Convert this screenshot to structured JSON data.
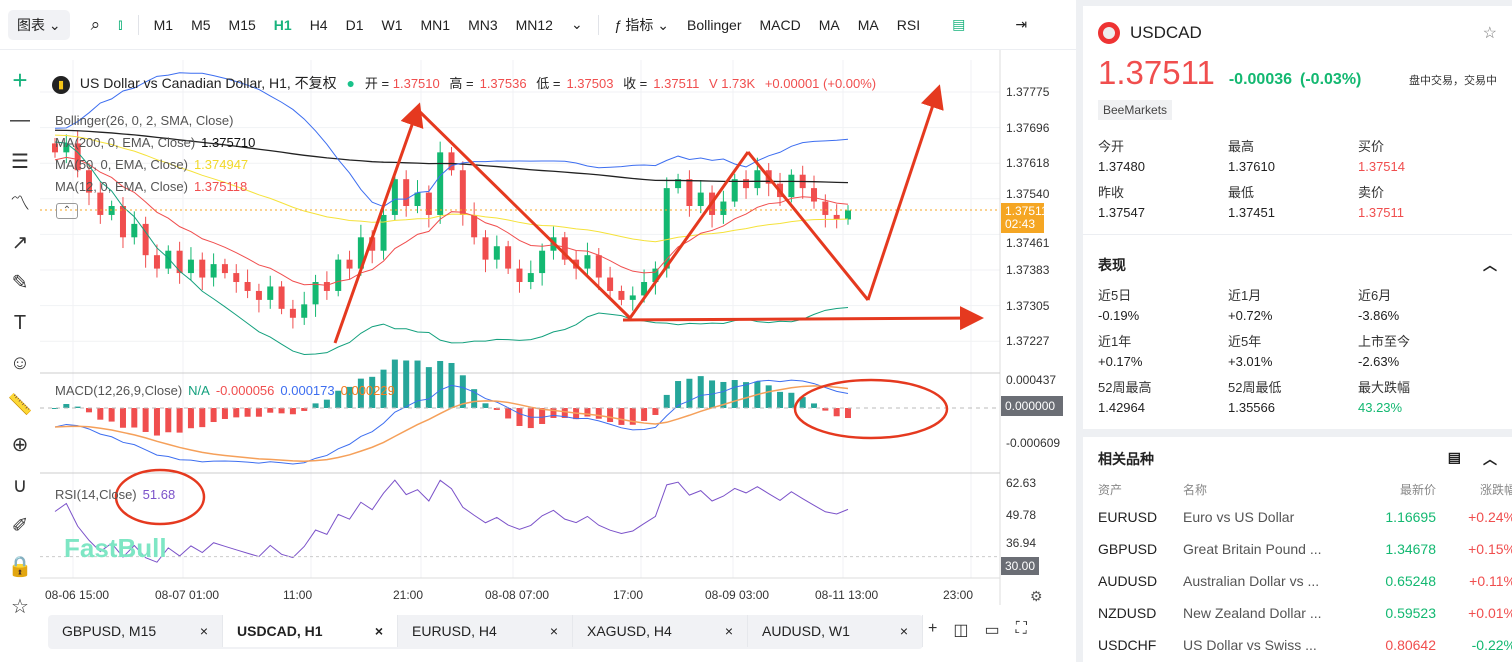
{
  "toolbar": {
    "chart_type": "图表",
    "timeframes": [
      "M1",
      "M5",
      "M15",
      "H1",
      "H4",
      "D1",
      "W1",
      "MN1",
      "MN3",
      "MN12"
    ],
    "active_timeframe": "H1",
    "indicators_label": "指标",
    "indicators": [
      "Bollinger",
      "MACD",
      "MA",
      "MA",
      "RSI"
    ]
  },
  "legend": {
    "title": "US Dollar vs Canadian Dollar, H1, 不复权",
    "open_label": "开 =",
    "open": "1.37510",
    "high_label": "高 =",
    "high": "1.37536",
    "low_label": "低 =",
    "low": "1.37503",
    "close_label": "收 =",
    "close": "1.37511",
    "volume": "V 1.73K",
    "change": "+0.00001 (+0.00%)",
    "bollinger": "Bollinger(26, 0, 2, SMA, Close)",
    "ma200": "MA(200, 0, EMA, Close)",
    "ma200_val": "1.375710",
    "ma50": "MA(50, 0, EMA, Close)",
    "ma50_val": "1.374947",
    "ma12": "MA(12, 0, EMA, Close)",
    "ma12_val": "1.375118",
    "macd": "MACD(12,26,9,Close)",
    "macd_na": "N/A",
    "macd_hist": "-0.000056",
    "macd_line": "0.000173",
    "macd_signal": "0.000229",
    "rsi": "RSI(14,Close)",
    "rsi_val": "51.68",
    "watermark": "FastBull"
  },
  "price_axis": [
    "1.37775",
    "1.37696",
    "1.37618",
    "1.37540",
    "1.37461",
    "1.37383",
    "1.37305",
    "1.37227"
  ],
  "price_tag": {
    "price": "1.37511",
    "countdown": "02:43"
  },
  "macd_axis": [
    "0.000437",
    "0.000000",
    "-0.000609"
  ],
  "rsi_axis": [
    "62.63",
    "49.78",
    "36.94",
    "30.00"
  ],
  "time_axis": [
    "08-06 15:00",
    "08-07 01:00",
    "11:00",
    "21:00",
    "08-08 07:00",
    "17:00",
    "08-09 03:00",
    "08-11 13:00",
    "23:00"
  ],
  "tabs": [
    {
      "label": "GBPUSD, M15"
    },
    {
      "label": "USDCAD, H1"
    },
    {
      "label": "EURUSD, H4"
    },
    {
      "label": "XAGUSD, H4"
    },
    {
      "label": "AUDUSD, W1"
    }
  ],
  "colors": {
    "up": "#13b871",
    "down": "#f04e4e",
    "ma200": "#222222",
    "ma50": "#f5e23a",
    "ma12": "#f04e4e",
    "boll_up": "#3d6ef0",
    "boll_low": "#13a07d",
    "annot": "#e5391f"
  },
  "chart_data": {
    "type": "candlestick",
    "symbol": "USDCAD",
    "interval": "H1",
    "ylim": [
      1.372,
      1.3782
    ],
    "closes": [
      1.3764,
      1.3766,
      1.376,
      1.3755,
      1.375,
      1.3752,
      1.3745,
      1.3748,
      1.3741,
      1.3738,
      1.3742,
      1.3737,
      1.374,
      1.3736,
      1.3739,
      1.3737,
      1.3735,
      1.3733,
      1.3731,
      1.3734,
      1.3729,
      1.3727,
      1.373,
      1.3735,
      1.3733,
      1.374,
      1.3738,
      1.3745,
      1.3742,
      1.375,
      1.3758,
      1.3752,
      1.3755,
      1.375,
      1.3764,
      1.376,
      1.375,
      1.3745,
      1.374,
      1.3743,
      1.3738,
      1.3735,
      1.3737,
      1.3742,
      1.3745,
      1.374,
      1.3738,
      1.3741,
      1.3736,
      1.3733,
      1.3731,
      1.3732,
      1.3735,
      1.3738,
      1.3756,
      1.3758,
      1.3752,
      1.3755,
      1.375,
      1.3753,
      1.3758,
      1.3756,
      1.376,
      1.3757,
      1.3754,
      1.3759,
      1.3756,
      1.3753,
      1.375,
      1.3749,
      1.3751
    ]
  },
  "panel": {
    "symbol": "USDCAD",
    "price": "1.37511",
    "change": "-0.00036",
    "change_pct": "(-0.03%)",
    "status": "盘中交易，交易中",
    "broker": "BeeMarkets",
    "quote": [
      {
        "label": "今开",
        "value": "1.37480"
      },
      {
        "label": "最高",
        "value": "1.37610"
      },
      {
        "label": "买价",
        "value": "1.37514"
      },
      {
        "label": "昨收",
        "value": "1.37547"
      },
      {
        "label": "最低",
        "value": "1.37451"
      },
      {
        "label": "卖价",
        "value": "1.37511"
      }
    ],
    "perf_title": "表现",
    "perf": [
      {
        "label": "近5日",
        "value": "-0.19%"
      },
      {
        "label": "近1月",
        "value": "+0.72%"
      },
      {
        "label": "近6月",
        "value": "-3.86%"
      },
      {
        "label": "近1年",
        "value": "+0.17%"
      },
      {
        "label": "近5年",
        "value": "+3.01%"
      },
      {
        "label": "上市至今",
        "value": "-2.63%"
      },
      {
        "label": "52周最高",
        "value": "1.42964"
      },
      {
        "label": "52周最低",
        "value": "1.35566"
      },
      {
        "label": "最大跌幅",
        "value": "43.23%"
      }
    ],
    "related_title": "相关品种",
    "cols": [
      "资产",
      "名称",
      "最新价",
      "涨跌幅"
    ],
    "related": [
      {
        "asset": "EURUSD",
        "name": "Euro vs US Dollar",
        "price": "1.16695",
        "chg": "+0.24%"
      },
      {
        "asset": "GBPUSD",
        "name": "Great Britain Pound ...",
        "price": "1.34678",
        "chg": "+0.15%"
      },
      {
        "asset": "AUDUSD",
        "name": "Australian Dollar vs ...",
        "price": "0.65248",
        "chg": "+0.11%"
      },
      {
        "asset": "NZDUSD",
        "name": "New Zealand Dollar ...",
        "price": "0.59523",
        "chg": "+0.01%"
      },
      {
        "asset": "USDCHF",
        "name": "US Dollar vs Swiss ...",
        "price": "0.80642",
        "chg": "-0.22%"
      }
    ]
  }
}
